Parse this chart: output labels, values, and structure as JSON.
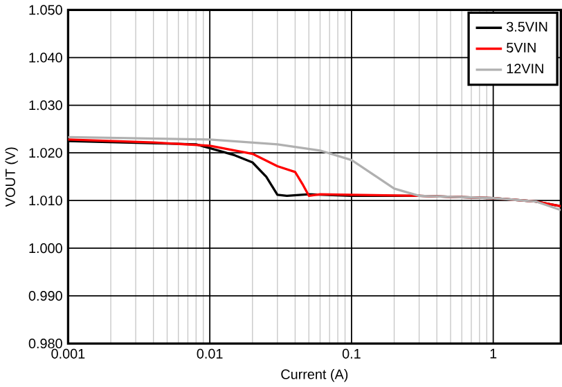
{
  "chart_data": {
    "type": "line",
    "xlabel": "Current (A)",
    "ylabel": "VOUT (V)",
    "log": "x",
    "grid": true,
    "legend": "top right",
    "marker": "none",
    "line_style": "solid",
    "xlim": [
      0.001,
      3
    ],
    "xticks": [
      0.001,
      0.01,
      0.1,
      1
    ],
    "ylim": [
      0.98,
      1.05
    ],
    "yticks": [
      {
        "value": 0.98,
        "label": "0.980"
      },
      {
        "value": 0.99,
        "label": "0.990"
      },
      {
        "value": 1.0,
        "label": "1.000"
      },
      {
        "value": 1.01,
        "label": "1.010"
      },
      {
        "value": 1.02,
        "label": "1.020"
      },
      {
        "value": 1.03,
        "label": "1.030"
      },
      {
        "value": 1.04,
        "label": "1.040"
      },
      {
        "value": 1.05,
        "label": "1.050"
      }
    ],
    "series": [
      {
        "name": "3.5VIN",
        "color": "#000000",
        "x": [
          0.001,
          0.004,
          0.008,
          0.01,
          0.015,
          0.02,
          0.025,
          0.03,
          0.035,
          0.05,
          0.1,
          0.3,
          1,
          2,
          3
        ],
        "values": [
          1.0225,
          null,
          1.0218,
          1.021,
          1.0195,
          1.018,
          1.015,
          1.0112,
          1.011,
          1.0113,
          1.011,
          1.011,
          1.0105,
          1.0098,
          1.0088
        ]
      },
      {
        "name": "5VIN",
        "color": "#ff0000",
        "x": [
          0.001,
          0.004,
          0.01,
          0.02,
          0.03,
          0.04,
          0.045,
          0.05,
          0.06,
          0.1,
          0.3,
          1,
          2,
          3
        ],
        "values": [
          1.0228,
          1.0222,
          1.0215,
          1.0198,
          1.0172,
          1.016,
          1.0135,
          1.011,
          1.0113,
          1.0112,
          1.011,
          1.0105,
          1.0098,
          1.0088
        ]
      },
      {
        "name": "12VIN",
        "color": "#b0b0b0",
        "x": [
          0.001,
          0.01,
          0.03,
          0.06,
          0.1,
          0.15,
          0.2,
          0.3,
          1,
          2,
          3
        ],
        "values": [
          1.0233,
          1.0228,
          1.0218,
          1.0205,
          1.0185,
          1.015,
          1.0125,
          1.011,
          1.0105,
          1.0098,
          1.008
        ]
      }
    ]
  }
}
